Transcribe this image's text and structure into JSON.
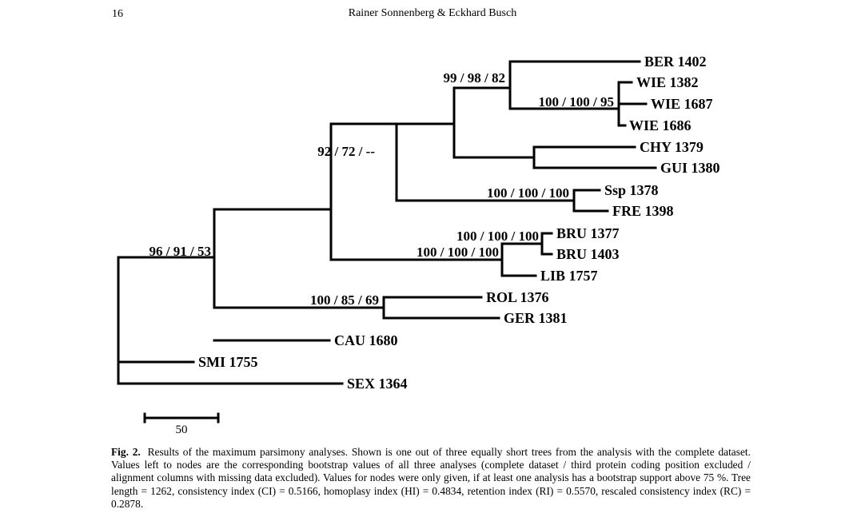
{
  "header": {
    "page_number": "16",
    "running_head": "Rainer Sonnenberg & Eckhard Busch"
  },
  "figure": {
    "taxa": [
      {
        "id": "ber1402",
        "label": "BER 1402"
      },
      {
        "id": "wie1382",
        "label": "WIE 1382"
      },
      {
        "id": "wie1687",
        "label": "WIE 1687"
      },
      {
        "id": "wie1686",
        "label": "WIE 1686"
      },
      {
        "id": "chy1379",
        "label": "CHY 1379"
      },
      {
        "id": "gui1380",
        "label": "GUI 1380"
      },
      {
        "id": "ssp1378",
        "label": "Ssp 1378"
      },
      {
        "id": "fre1398",
        "label": "FRE 1398"
      },
      {
        "id": "bru1377",
        "label": "BRU 1377"
      },
      {
        "id": "bru1403",
        "label": "BRU 1403"
      },
      {
        "id": "lib1757",
        "label": "LIB 1757"
      },
      {
        "id": "rol1376",
        "label": "ROL 1376"
      },
      {
        "id": "ger1381",
        "label": "GER 1381"
      },
      {
        "id": "cau1680",
        "label": "CAU 1680"
      },
      {
        "id": "smi1755",
        "label": "SMI 1755"
      },
      {
        "id": "sex1364",
        "label": "SEX 1364"
      }
    ],
    "supports": [
      {
        "id": "n-ber-wie",
        "label": "99 / 98 / 82"
      },
      {
        "id": "n-wie",
        "label": "100 / 100 / 95"
      },
      {
        "id": "n-ingroup-a",
        "label": "92 / 72 / --"
      },
      {
        "id": "n-ssp-fre",
        "label": "100 / 100 / 100"
      },
      {
        "id": "n-bru",
        "label": "100 / 100 / 100"
      },
      {
        "id": "n-bru-lib",
        "label": "100 / 100 / 100"
      },
      {
        "id": "n-main",
        "label": "96 / 91 / 53"
      },
      {
        "id": "n-rol-ger",
        "label": "100 / 85 / 69"
      }
    ],
    "scale_bar": {
      "label": "50"
    }
  },
  "caption": {
    "label": "Fig. 2.",
    "text": "Results of the maximum parsimony analyses. Shown is one out of three equally short trees from the analysis with the complete dataset. Values left to nodes are the corresponding bootstrap values of all three analyses (complete dataset / third protein coding position excluded / alignment columns with missing data excluded). Values for nodes were only given, if at least one analysis has a bootstrap support above 75 %. Tree length = 1262, consistency index (CI) = 0.5166, homoplasy index (HI) = 0.4834, retention index (RI) = 0.5570, rescaled consistency index (RC) = 0.2878."
  }
}
